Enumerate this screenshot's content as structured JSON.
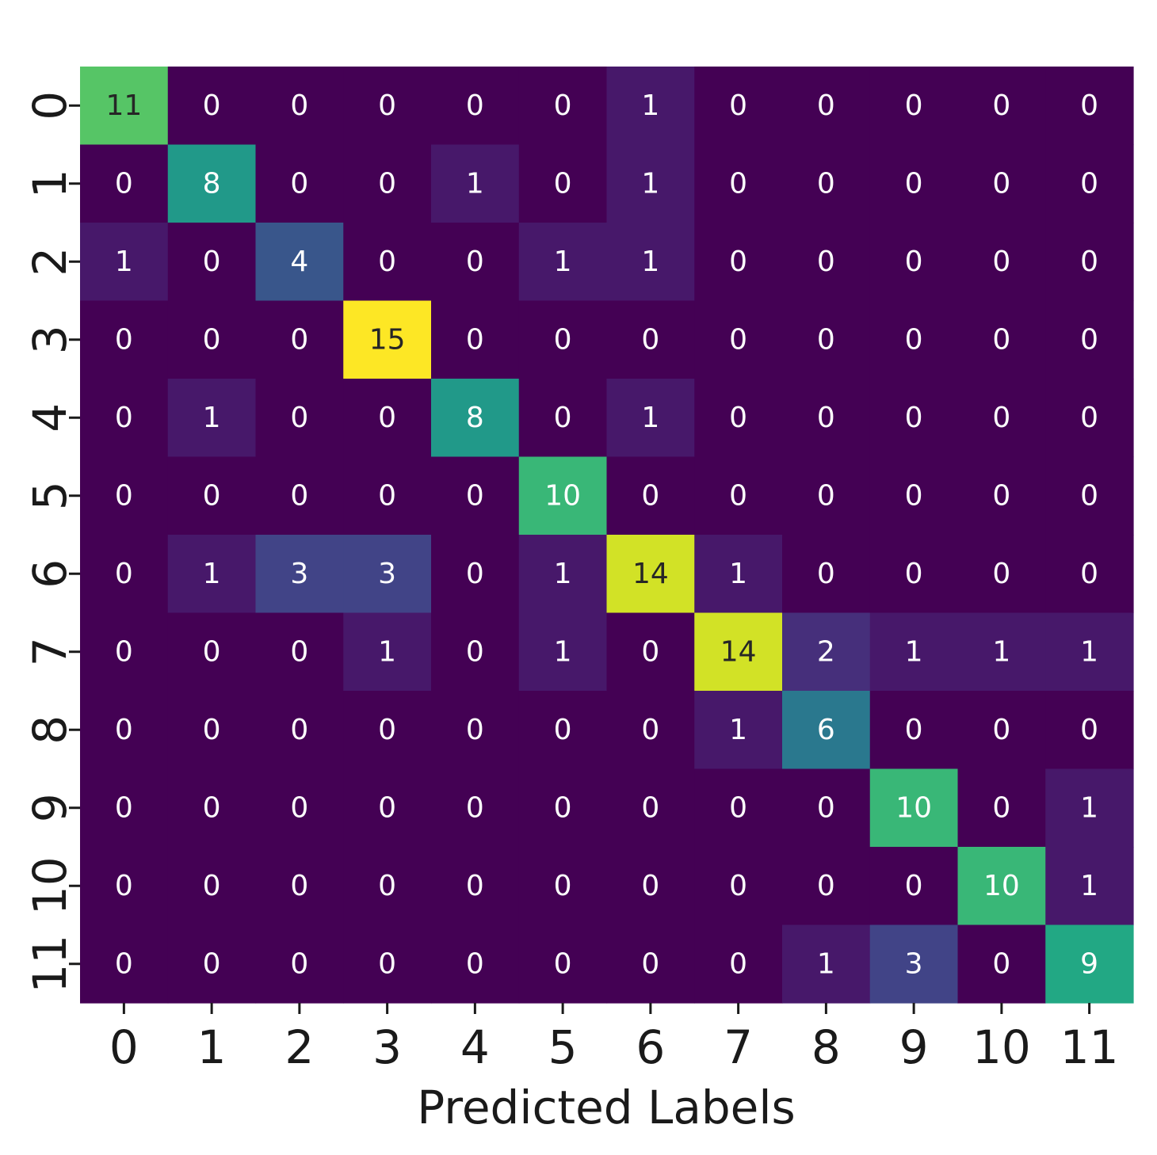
{
  "chart_data": {
    "type": "heatmap",
    "title": "",
    "xlabel": "Predicted Labels",
    "ylabel": "",
    "x_tick_labels": [
      "0",
      "1",
      "2",
      "3",
      "4",
      "5",
      "6",
      "7",
      "8",
      "9",
      "10",
      "11"
    ],
    "y_tick_labels": [
      "0",
      "1",
      "2",
      "3",
      "4",
      "5",
      "6",
      "7",
      "8",
      "9",
      "10",
      "11"
    ],
    "colormap": "viridis",
    "value_range": [
      0,
      15
    ],
    "colorbar": false,
    "grid": false,
    "matrix": [
      [
        11,
        0,
        0,
        0,
        0,
        0,
        1,
        0,
        0,
        0,
        0,
        0
      ],
      [
        0,
        8,
        0,
        0,
        1,
        0,
        1,
        0,
        0,
        0,
        0,
        0
      ],
      [
        1,
        0,
        4,
        0,
        0,
        1,
        1,
        0,
        0,
        0,
        0,
        0
      ],
      [
        0,
        0,
        0,
        15,
        0,
        0,
        0,
        0,
        0,
        0,
        0,
        0
      ],
      [
        0,
        1,
        0,
        0,
        8,
        0,
        1,
        0,
        0,
        0,
        0,
        0
      ],
      [
        0,
        0,
        0,
        0,
        0,
        10,
        0,
        0,
        0,
        0,
        0,
        0
      ],
      [
        0,
        1,
        3,
        3,
        0,
        1,
        14,
        1,
        0,
        0,
        0,
        0
      ],
      [
        0,
        0,
        0,
        1,
        0,
        1,
        0,
        14,
        2,
        1,
        1,
        1
      ],
      [
        0,
        0,
        0,
        0,
        0,
        0,
        0,
        1,
        6,
        0,
        0,
        0
      ],
      [
        0,
        0,
        0,
        0,
        0,
        0,
        0,
        0,
        0,
        10,
        0,
        1
      ],
      [
        0,
        0,
        0,
        0,
        0,
        0,
        0,
        0,
        0,
        0,
        10,
        1
      ],
      [
        0,
        0,
        0,
        0,
        0,
        0,
        0,
        0,
        1,
        3,
        0,
        9
      ]
    ]
  }
}
